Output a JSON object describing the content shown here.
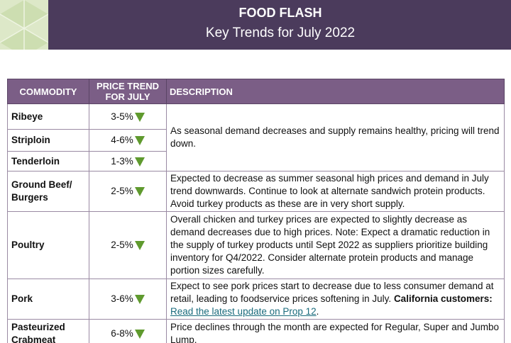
{
  "header": {
    "title": "FOOD FLASH",
    "subtitle": "Key Trends for July 2022"
  },
  "table": {
    "columns": [
      "COMMODITY",
      "PRICE TREND FOR JULY",
      "DESCRIPTION"
    ],
    "rows": [
      {
        "commodity": "Ribeye",
        "trend": "3-5%",
        "description": "As seasonal demand decreases and supply remains healthy, pricing will trend down."
      },
      {
        "commodity": "Striploin",
        "trend": "4-6%"
      },
      {
        "commodity": "Tenderloin",
        "trend": "1-3%"
      },
      {
        "commodity": "Ground Beef/ Burgers",
        "trend": "2-5%",
        "description": "Expected to decrease as summer seasonal high prices and demand in July trend downwards. Continue to look at alternate sandwich protein products. Avoid turkey products as these are in very short supply."
      },
      {
        "commodity": "Poultry",
        "trend": "2-5%",
        "description": "Overall chicken and turkey prices are expected to slightly decrease as demand decreases due to high prices. Note: Expect a dramatic reduction in the supply of turkey products until Sept 2022 as suppliers prioritize building inventory for Q4/2022. Consider alternate protein products and manage portion sizes carefully."
      },
      {
        "commodity": "Pork",
        "trend": "3-6%",
        "description": "Expect to see pork prices start to decrease due to less consumer demand at retail, leading to foodservice prices softening in July.",
        "description_bold": "California customers:",
        "description_link": "Read the latest update on Prop 12",
        "description_end": "."
      },
      {
        "commodity": "Pasteurized Crabmeat",
        "trend": "6-8%",
        "description": "Price declines through the month are expected for Regular, Super and Jumbo Lump."
      }
    ]
  }
}
